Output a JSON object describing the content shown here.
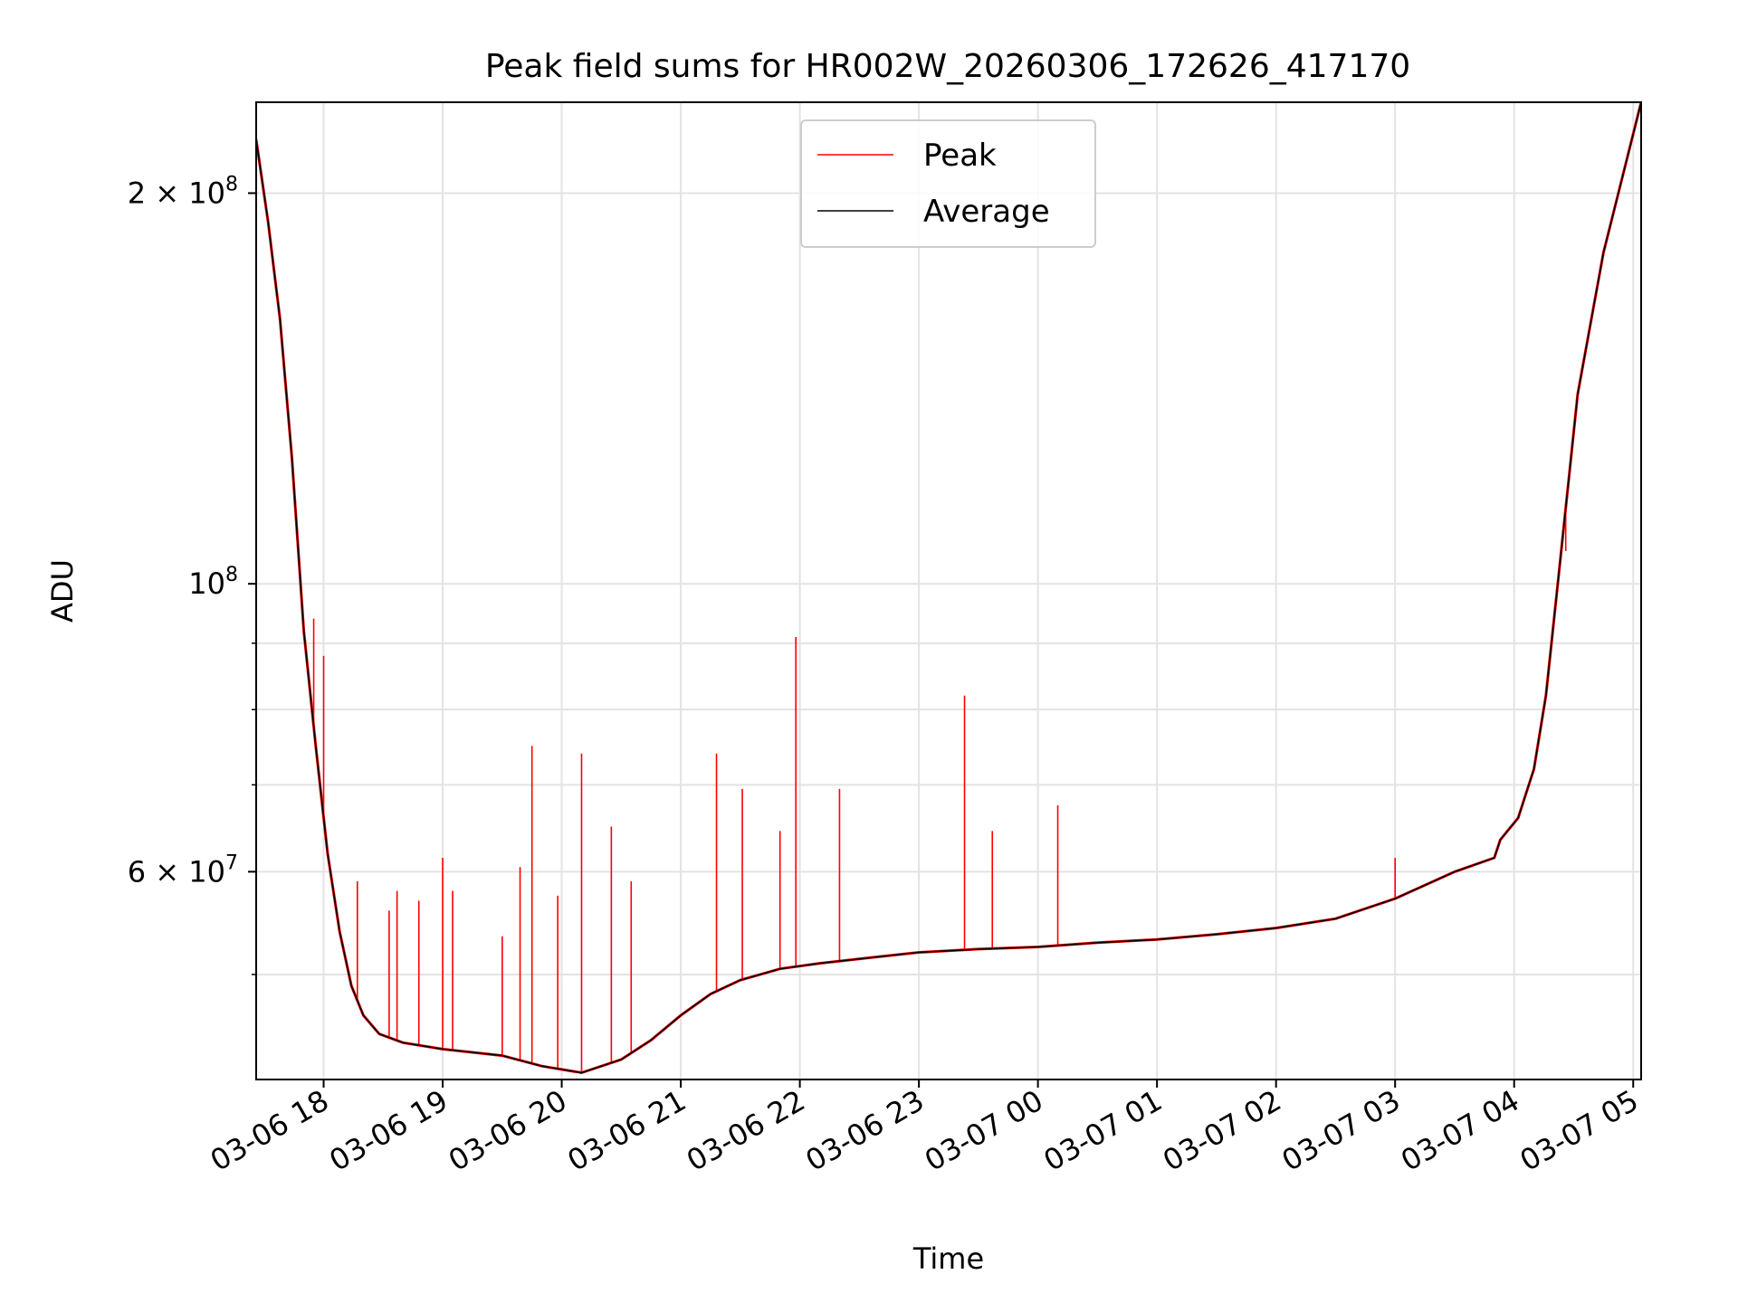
{
  "chart_data": {
    "type": "line",
    "title": "Peak field sums for HR002W_20260306_172626_417170",
    "xlabel": "Time",
    "ylabel": "ADU",
    "y_scale": "log",
    "ylim": [
      41500000,
      235000000
    ],
    "x_start": "2026-03-06 17:26",
    "x_end": "2026-03-07 05:04",
    "x_ticks": [
      "03-06 18",
      "03-06 19",
      "03-06 20",
      "03-06 21",
      "03-06 22",
      "03-06 23",
      "03-07 00",
      "03-07 01",
      "03-07 02",
      "03-07 03",
      "03-07 04",
      "03-07 05"
    ],
    "y_ticks_major": [
      {
        "value": 100000000,
        "mantissa": "",
        "exponent": "8"
      },
      {
        "value": 200000000,
        "mantissa": "2",
        "exponent": "8"
      },
      {
        "value": 60000000,
        "mantissa": "6",
        "exponent": "7"
      }
    ],
    "y_ticks_minor": [
      50000000,
      70000000,
      80000000,
      90000000
    ],
    "grid": true,
    "legend": {
      "position": "top-center",
      "entries": [
        "Peak",
        "Average"
      ]
    },
    "series": [
      {
        "name": "Average",
        "color": "#000000",
        "points": [
          [
            "2026-03-06 17:26",
            220000000
          ],
          [
            "2026-03-06 17:32",
            190000000
          ],
          [
            "2026-03-06 17:38",
            160000000
          ],
          [
            "2026-03-06 17:44",
            125000000
          ],
          [
            "2026-03-06 17:50",
            92000000
          ],
          [
            "2026-03-06 17:56",
            75000000
          ],
          [
            "2026-03-06 18:02",
            62000000
          ],
          [
            "2026-03-06 18:08",
            54000000
          ],
          [
            "2026-03-06 18:14",
            49000000
          ],
          [
            "2026-03-06 18:20",
            46500000
          ],
          [
            "2026-03-06 18:28",
            45000000
          ],
          [
            "2026-03-06 18:40",
            44300000
          ],
          [
            "2026-03-06 19:00",
            43800000
          ],
          [
            "2026-03-06 19:30",
            43300000
          ],
          [
            "2026-03-06 19:50",
            42500000
          ],
          [
            "2026-03-06 20:10",
            42000000
          ],
          [
            "2026-03-06 20:30",
            43000000
          ],
          [
            "2026-03-06 20:45",
            44500000
          ],
          [
            "2026-03-06 21:00",
            46500000
          ],
          [
            "2026-03-06 21:15",
            48300000
          ],
          [
            "2026-03-06 21:30",
            49500000
          ],
          [
            "2026-03-06 21:50",
            50500000
          ],
          [
            "2026-03-06 22:10",
            51000000
          ],
          [
            "2026-03-06 22:40",
            51600000
          ],
          [
            "2026-03-06 23:00",
            52000000
          ],
          [
            "2026-03-06 23:30",
            52300000
          ],
          [
            "2026-03-07 00:00",
            52500000
          ],
          [
            "2026-03-07 00:30",
            52900000
          ],
          [
            "2026-03-07 01:00",
            53200000
          ],
          [
            "2026-03-07 01:30",
            53700000
          ],
          [
            "2026-03-07 02:00",
            54300000
          ],
          [
            "2026-03-07 02:30",
            55200000
          ],
          [
            "2026-03-07 03:00",
            57200000
          ],
          [
            "2026-03-07 03:30",
            60000000
          ],
          [
            "2026-03-07 03:50",
            61500000
          ],
          [
            "2026-03-07 03:53",
            63500000
          ],
          [
            "2026-03-07 04:02",
            66000000
          ],
          [
            "2026-03-07 04:10",
            72000000
          ],
          [
            "2026-03-07 04:16",
            82000000
          ],
          [
            "2026-03-07 04:22",
            100000000
          ],
          [
            "2026-03-07 04:32",
            140000000
          ],
          [
            "2026-03-07 04:45",
            180000000
          ],
          [
            "2026-03-07 05:04",
            235000000
          ]
        ]
      },
      {
        "name": "Peak",
        "color": "#ff0000",
        "spikes": [
          [
            "2026-03-06 17:55",
            94000000
          ],
          [
            "2026-03-06 18:00",
            88000000
          ],
          [
            "2026-03-06 18:17",
            59000000
          ],
          [
            "2026-03-06 18:33",
            56000000
          ],
          [
            "2026-03-06 18:37",
            58000000
          ],
          [
            "2026-03-06 18:48",
            57000000
          ],
          [
            "2026-03-06 19:00",
            61500000
          ],
          [
            "2026-03-06 19:05",
            58000000
          ],
          [
            "2026-03-06 19:30",
            53500000
          ],
          [
            "2026-03-06 19:39",
            60500000
          ],
          [
            "2026-03-06 19:45",
            75000000
          ],
          [
            "2026-03-06 19:58",
            57500000
          ],
          [
            "2026-03-06 20:10",
            74000000
          ],
          [
            "2026-03-06 20:25",
            65000000
          ],
          [
            "2026-03-06 20:35",
            59000000
          ],
          [
            "2026-03-06 21:18",
            74000000
          ],
          [
            "2026-03-06 21:31",
            69500000
          ],
          [
            "2026-03-06 21:50",
            64500000
          ],
          [
            "2026-03-06 21:58",
            91000000
          ],
          [
            "2026-03-06 22:20",
            69500000
          ],
          [
            "2026-03-06 23:23",
            82000000
          ],
          [
            "2026-03-06 23:37",
            64500000
          ],
          [
            "2026-03-07 00:10",
            67500000
          ],
          [
            "2026-03-07 03:00",
            61500000
          ],
          [
            "2026-03-07 04:26",
            106000000
          ]
        ]
      }
    ]
  }
}
